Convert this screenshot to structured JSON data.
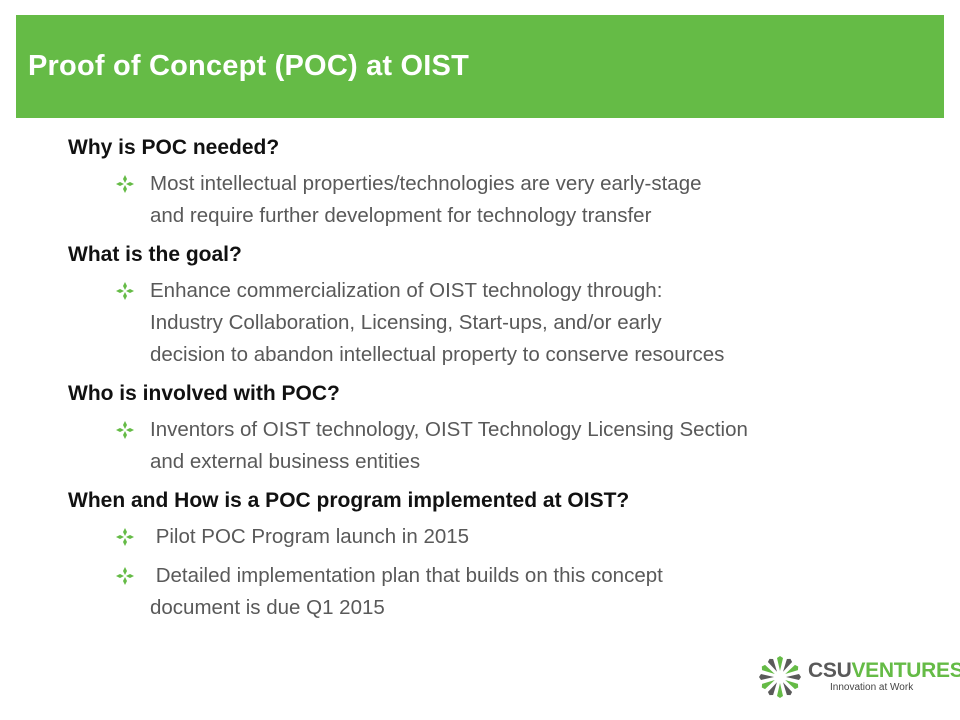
{
  "slide": {
    "title": "Proof of Concept (POC) at OIST",
    "sections": [
      {
        "question": "Why is POC needed?",
        "bullets": [
          [
            "Most intellectual properties/technologies are very early-stage",
            "and require further development for technology transfer"
          ]
        ]
      },
      {
        "question": "What is the goal?",
        "bullets": [
          [
            "Enhance commercialization of OIST technology through:",
            "Industry Collaboration, Licensing, Start-ups, and/or early",
            "decision to abandon intellectual property to conserve resources"
          ]
        ]
      },
      {
        "question": "Who is involved with POC?",
        "bullets": [
          [
            "Inventors of OIST technology, OIST Technology Licensing Section",
            "and external business entities"
          ]
        ]
      },
      {
        "question": "When and How is a POC program implemented at OIST?",
        "bullets": [
          [
            " Pilot POC Program launch in 2015"
          ],
          [
            " Detailed implementation plan that builds on this concept",
            "document is due Q1 2015"
          ]
        ]
      }
    ]
  },
  "logo": {
    "brand_part1": "CSU",
    "brand_part2": "VENTURES",
    "tagline": "Innovation at Work"
  },
  "colors": {
    "accent": "#65bb46",
    "title_text": "#ffffff",
    "question_text": "#111111",
    "bullet_text": "#595959",
    "glyph": "#65bb46"
  },
  "icons": {
    "bullet": "diamond-star-bullet-icon",
    "logo": "starburst-logo-icon"
  }
}
